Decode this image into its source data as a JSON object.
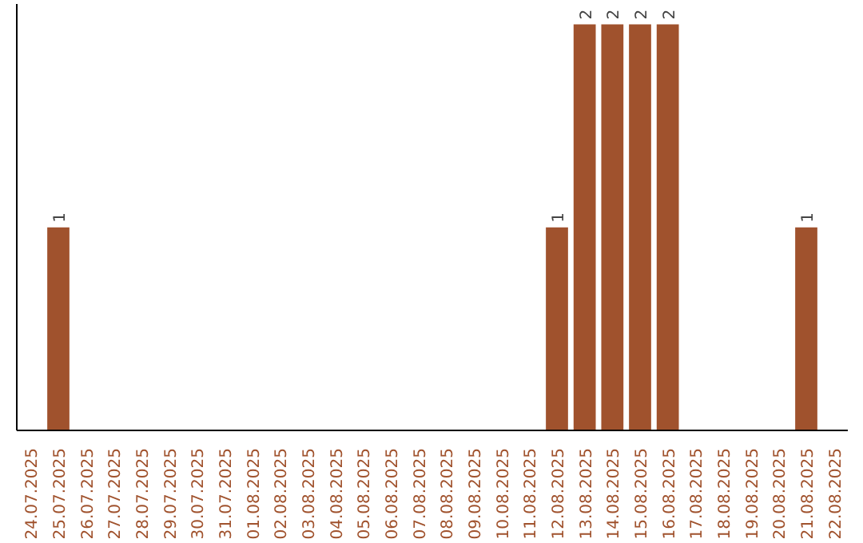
{
  "chart_data": {
    "type": "bar",
    "categories": [
      "24.07.2025",
      "25.07.2025",
      "26.07.2025",
      "27.07.2025",
      "28.07.2025",
      "29.07.2025",
      "30.07.2025",
      "31.07.2025",
      "01.08.2025",
      "02.08.2025",
      "03.08.2025",
      "04.08.2025",
      "05.08.2025",
      "06.08.2025",
      "07.08.2025",
      "08.08.2025",
      "09.08.2025",
      "10.08.2025",
      "11.08.2025",
      "12.08.2025",
      "13.08.2025",
      "14.08.2025",
      "15.08.2025",
      "16.08.2025",
      "17.08.2025",
      "18.08.2025",
      "19.08.2025",
      "20.08.2025",
      "21.08.2025",
      "22.08.2025"
    ],
    "values": [
      0,
      1,
      0,
      0,
      0,
      0,
      0,
      0,
      0,
      0,
      0,
      0,
      0,
      0,
      0,
      0,
      0,
      0,
      0,
      1,
      2,
      2,
      2,
      2,
      0,
      0,
      0,
      0,
      1,
      0
    ],
    "color": "#a0522d",
    "value_labels": [
      null,
      "1",
      null,
      null,
      null,
      null,
      null,
      null,
      null,
      null,
      null,
      null,
      null,
      null,
      null,
      null,
      null,
      null,
      null,
      "1",
      "2",
      "2",
      "2",
      "2",
      null,
      null,
      null,
      null,
      "1",
      null
    ],
    "ylim": [
      0,
      2.1
    ],
    "tick_labels": "x",
    "grid": false
  }
}
